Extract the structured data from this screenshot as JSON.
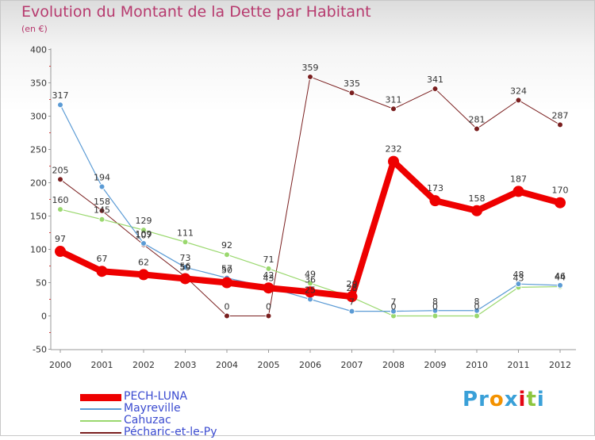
{
  "title": "Evolution du Montant de la Dette par Habitant",
  "subtitle": "(en €)",
  "logo": {
    "letters": [
      "P",
      "r",
      "o",
      "x",
      "i",
      "t",
      "i"
    ],
    "colors": [
      "#3aa0d8",
      "#3aa0d8",
      "#f39200",
      "#3aa0d8",
      "#e30613",
      "#8dc63f",
      "#3aa0d8"
    ]
  },
  "chart_data": {
    "type": "line",
    "x": [
      2000,
      2001,
      2002,
      2003,
      2004,
      2005,
      2006,
      2007,
      2008,
      2009,
      2010,
      2011,
      2012
    ],
    "x_tick_labels": [
      "2000",
      "2001",
      "2002",
      "2003",
      "2004",
      "2005",
      "2006",
      "2007",
      "2008",
      "2009",
      "2010",
      "2011",
      "2012"
    ],
    "ylim": [
      -50,
      400
    ],
    "y_ticks": [
      -50,
      0,
      50,
      100,
      150,
      200,
      250,
      300,
      350,
      400
    ],
    "grid": false,
    "legend_position": "bottom-left",
    "series": [
      {
        "name": "Pécharic-et-le-Py",
        "color": "#7a1f1f",
        "width": 1,
        "marker_radius": 3.5,
        "values": [
          205,
          158,
          107,
          59,
          0,
          0,
          359,
          335,
          311,
          341,
          281,
          324,
          287
        ],
        "labels": [
          "205",
          "158",
          "107",
          "59",
          "0",
          "0",
          "359",
          "335",
          "311",
          "341",
          "281",
          "324",
          "287"
        ]
      },
      {
        "name": "Cahuzac",
        "color": "#9ad86e",
        "width": 1.2,
        "marker_radius": 3.5,
        "values": [
          160,
          145,
          129,
          111,
          92,
          71,
          49,
          28,
          0,
          0,
          0,
          43,
          44
        ],
        "labels": [
          "160",
          "145",
          "129",
          "111",
          "92",
          "71",
          "49",
          "28",
          "0",
          "0",
          "0",
          "43",
          "44"
        ]
      },
      {
        "name": "Mayreville",
        "color": "#5b9bd5",
        "width": 1.2,
        "marker_radius": 3.5,
        "values": [
          317,
          194,
          109,
          73,
          57,
          43,
          25,
          7,
          7,
          8,
          8,
          48,
          46
        ],
        "labels": [
          "317",
          "194",
          "109",
          "73",
          "57",
          "43",
          "25",
          "7",
          "7",
          "8",
          "8",
          "48",
          "46"
        ]
      },
      {
        "name": "PECH-LUNA",
        "color": "#ee0000",
        "width": 8,
        "marker_radius": 7,
        "values": [
          97,
          67,
          62,
          56,
          50,
          42,
          36,
          29,
          232,
          173,
          158,
          187,
          170
        ],
        "labels": [
          "97",
          "67",
          "62",
          "56",
          "50",
          "42",
          "36",
          "29",
          "232",
          "173",
          "158",
          "187",
          "170"
        ]
      }
    ],
    "legend": [
      {
        "name": "PECH-LUNA",
        "color": "#ee0000",
        "text_color": "#3b4bd0",
        "thickness": 9
      },
      {
        "name": "Mayreville",
        "color": "#5b9bd5",
        "text_color": "#3b4bd0",
        "thickness": 2
      },
      {
        "name": "Cahuzac",
        "color": "#9ad86e",
        "text_color": "#3b4bd0",
        "thickness": 2
      },
      {
        "name": "Pécharic-et-le-Py",
        "color": "#7a1f1f",
        "text_color": "#3b4bd0",
        "thickness": 2
      }
    ]
  }
}
